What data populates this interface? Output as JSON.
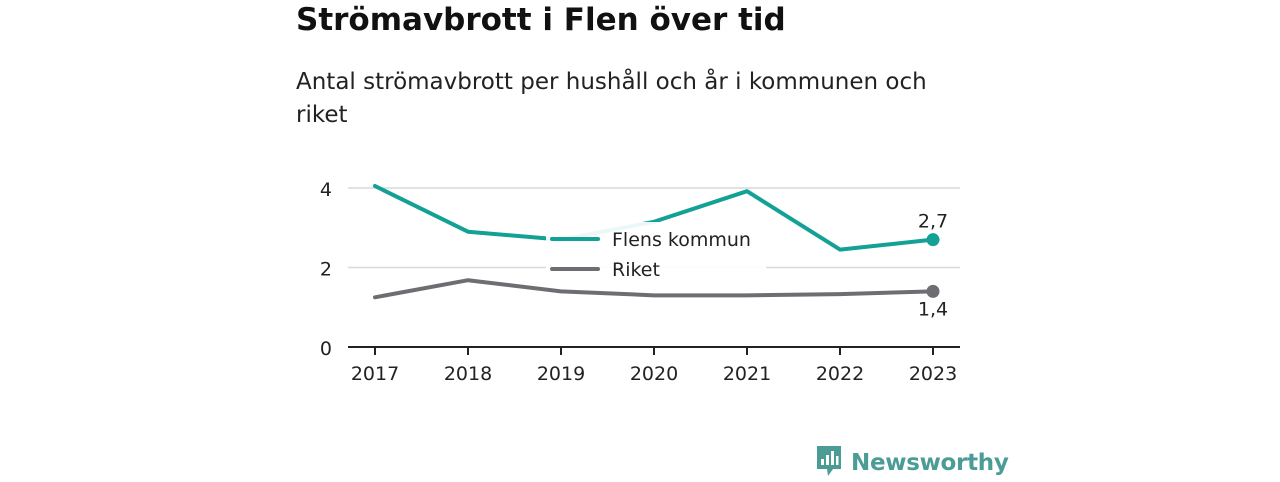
{
  "title": "Strömavbrott i Flen över tid",
  "subtitle": "Antal strömavbrott per hushåll och år i kommunen och riket",
  "brand": {
    "name": "Newsworthy",
    "logo_icon": "newsworthy-bar-chart-icon"
  },
  "chart_data": {
    "type": "line",
    "x": [
      "2017",
      "2018",
      "2019",
      "2020",
      "2021",
      "2022",
      "2023"
    ],
    "ylim": [
      0,
      4
    ],
    "yticks": [
      "0",
      "2",
      "4"
    ],
    "grid": true,
    "legend_placement": "center",
    "series": [
      {
        "name": "Flens kommun",
        "color": "#12a194",
        "values": [
          4.05,
          2.9,
          2.7,
          3.15,
          3.92,
          2.45,
          2.7
        ],
        "end_label": "2,7"
      },
      {
        "name": "Riket",
        "color": "#6e6d72",
        "values": [
          1.25,
          1.68,
          1.4,
          1.3,
          1.3,
          1.33,
          1.4
        ],
        "end_label": "1,4"
      }
    ]
  }
}
